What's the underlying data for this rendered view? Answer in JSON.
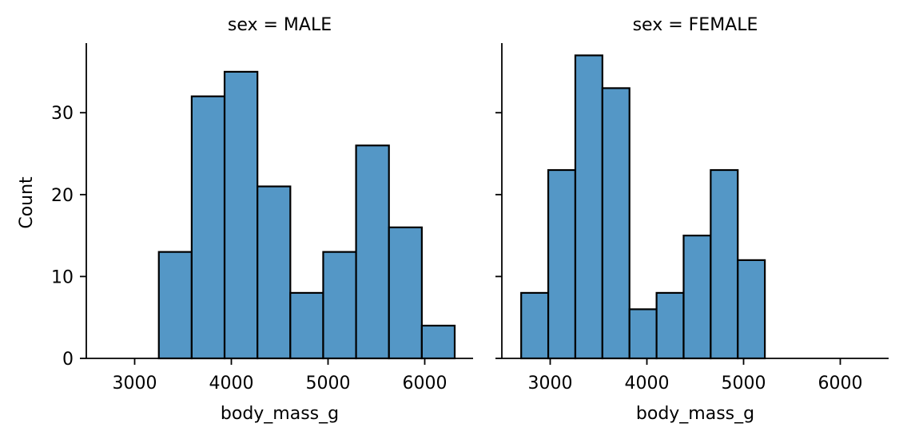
{
  "chart_data": {
    "type": "bar",
    "subtype": "histogram facet grid",
    "bar_color": "#5497c6",
    "edge_color": "#000000",
    "ylabel": "Count",
    "ylim": [
      0,
      38.5
    ],
    "yticks": [
      0,
      10,
      20,
      30
    ],
    "xlim": [
      2500,
      6500
    ],
    "xticks": [
      3000,
      4000,
      5000,
      6000
    ],
    "panels": [
      {
        "title": "sex = MALE",
        "xlabel": "body_mass_g",
        "bins": [
          {
            "x0": 3250,
            "x1": 3590,
            "count": 13
          },
          {
            "x0": 3590,
            "x1": 3930,
            "count": 32
          },
          {
            "x0": 3930,
            "x1": 4270,
            "count": 35
          },
          {
            "x0": 4270,
            "x1": 4610,
            "count": 21
          },
          {
            "x0": 4610,
            "x1": 4950,
            "count": 8
          },
          {
            "x0": 4950,
            "x1": 5290,
            "count": 13
          },
          {
            "x0": 5290,
            "x1": 5630,
            "count": 26
          },
          {
            "x0": 5630,
            "x1": 5970,
            "count": 16
          },
          {
            "x0": 5970,
            "x1": 6310,
            "count": 4
          }
        ]
      },
      {
        "title": "sex = FEMALE",
        "xlabel": "body_mass_g",
        "bins": [
          {
            "x0": 2700,
            "x1": 2980,
            "count": 8
          },
          {
            "x0": 2980,
            "x1": 3260,
            "count": 23
          },
          {
            "x0": 3260,
            "x1": 3540,
            "count": 37
          },
          {
            "x0": 3540,
            "x1": 3820,
            "count": 33
          },
          {
            "x0": 3820,
            "x1": 4100,
            "count": 6
          },
          {
            "x0": 4100,
            "x1": 4380,
            "count": 8
          },
          {
            "x0": 4380,
            "x1": 4660,
            "count": 15
          },
          {
            "x0": 4660,
            "x1": 4940,
            "count": 23
          },
          {
            "x0": 4940,
            "x1": 5220,
            "count": 12
          }
        ]
      }
    ]
  }
}
